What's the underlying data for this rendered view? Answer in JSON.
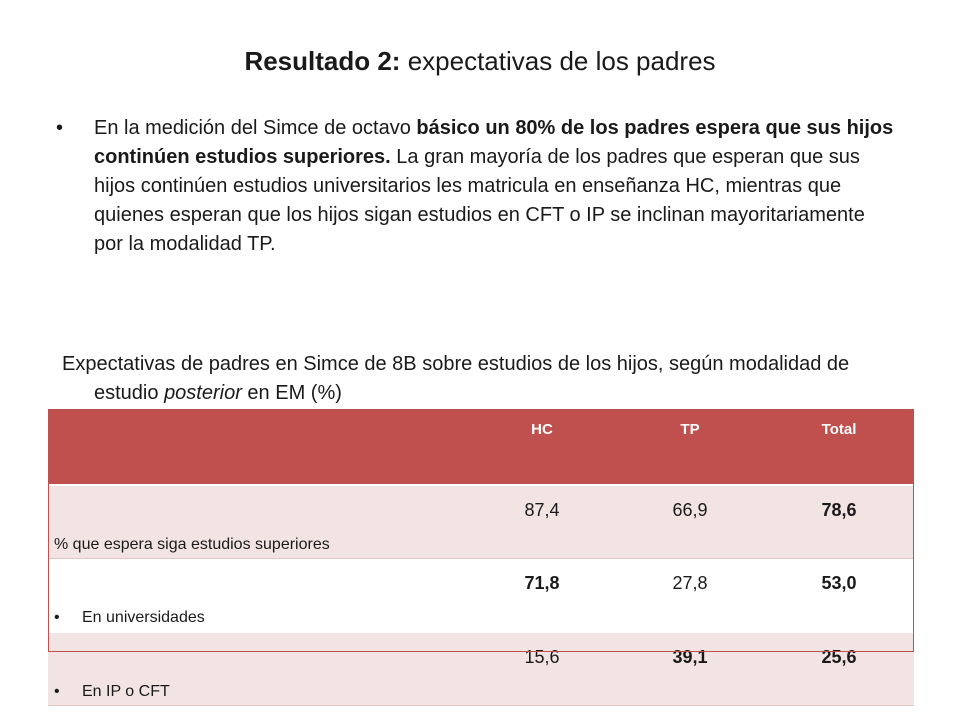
{
  "title": {
    "strong": "Resultado 2:",
    "rest": " expectativas de los padres"
  },
  "bullet": {
    "marker": "•",
    "text_a": "En la medición del Simce de octavo ",
    "text_b": "básico un 80% de los padres espera que sus hijos continúen estudios superiores.",
    "text_c": " La gran mayoría de los padres que esperan que sus hijos continúen estudios universitarios les matricula en enseñanza HC, mientras que quienes esperan que los hijos sigan estudios en CFT o IP se inclinan mayoritariamente por la modalidad TP."
  },
  "caption": {
    "text_a": "Expectativas de padres en Simce de 8B sobre estudios de los hijos, según modalidad de estudio ",
    "text_b": "posterior",
    "text_c": " en EM (%)"
  },
  "table": {
    "headers": [
      "",
      "HC",
      "TP",
      "Total"
    ],
    "rows": [
      {
        "marker": "",
        "label": "% que espera siga estudios superiores",
        "values": [
          "87,4",
          "66,9",
          "78,6"
        ],
        "bold": [
          false,
          false,
          true
        ]
      },
      {
        "marker": "•",
        "label": "En universidades",
        "values": [
          "71,8",
          "27,8",
          "53,0"
        ],
        "bold": [
          true,
          false,
          true
        ]
      },
      {
        "marker": "•",
        "label": "En IP o CFT",
        "values": [
          "15,6",
          "39,1",
          "25,6"
        ],
        "bold": [
          false,
          true,
          true
        ]
      }
    ]
  }
}
